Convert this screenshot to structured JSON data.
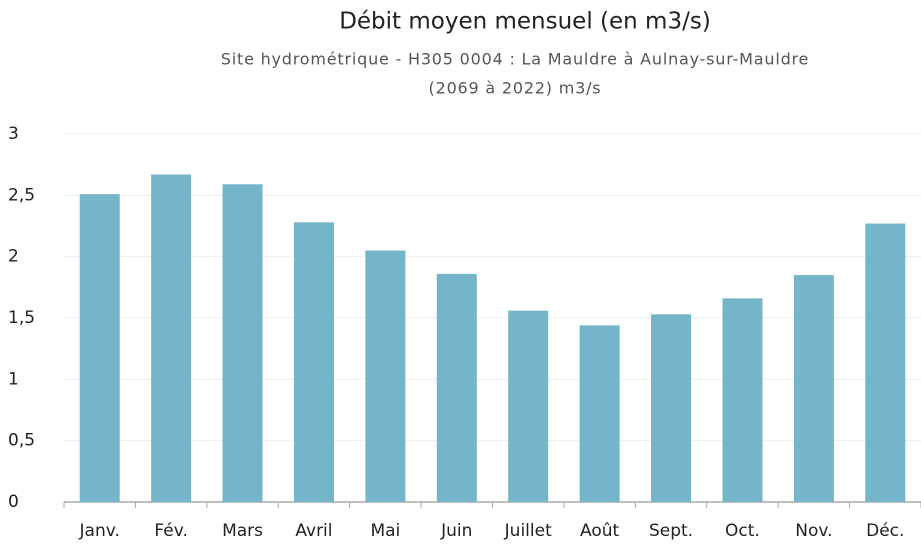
{
  "chart_data": {
    "type": "bar",
    "title": "Débit moyen mensuel (en m3/s)",
    "subtitle": [
      "Site hydrométrique - H305 0004 : La Mauldre à Aulnay-sur-Mauldre",
      "(2069 à 2022) m3/s"
    ],
    "categories": [
      "Janv.",
      "Fév.",
      "Mars",
      "Avril",
      "Mai",
      "Juin",
      "Juillet",
      "Août",
      "Sept.",
      "Oct.",
      "Nov.",
      "Déc."
    ],
    "values": [
      2.51,
      2.67,
      2.59,
      2.28,
      2.05,
      1.86,
      1.56,
      1.44,
      1.53,
      1.66,
      1.85,
      2.27
    ],
    "color": "#75b5c9",
    "ylim": [
      0,
      3
    ],
    "yticks": [
      0,
      {
        "value": 0.5,
        "label": "0,5"
      },
      1,
      {
        "value": 1.5,
        "label": "1,5"
      },
      2,
      {
        "value": 2.5,
        "label": "2,5"
      },
      3
    ],
    "grid": true
  }
}
